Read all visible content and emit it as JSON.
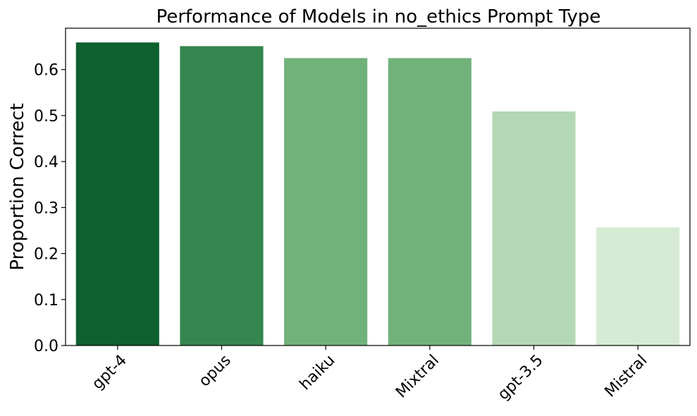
{
  "chart_data": {
    "type": "bar",
    "title": "Performance of Models in no_ethics Prompt Type",
    "xlabel": "",
    "ylabel": "Proportion Correct",
    "categories": [
      "gpt-4",
      "opus",
      "haiku",
      "Mixtral",
      "gpt-3.5",
      "Mistral"
    ],
    "values": [
      0.659,
      0.651,
      0.625,
      0.625,
      0.509,
      0.257
    ],
    "colors": [
      "#0e612f",
      "#35864e",
      "#71b27a",
      "#71b27a",
      "#b3d8b3",
      "#d6ebd3"
    ],
    "ylim": [
      0,
      0.69
    ],
    "yticks": [
      "0.0",
      "0.1",
      "0.2",
      "0.3",
      "0.4",
      "0.5",
      "0.6"
    ],
    "grid": false,
    "legend": false
  }
}
